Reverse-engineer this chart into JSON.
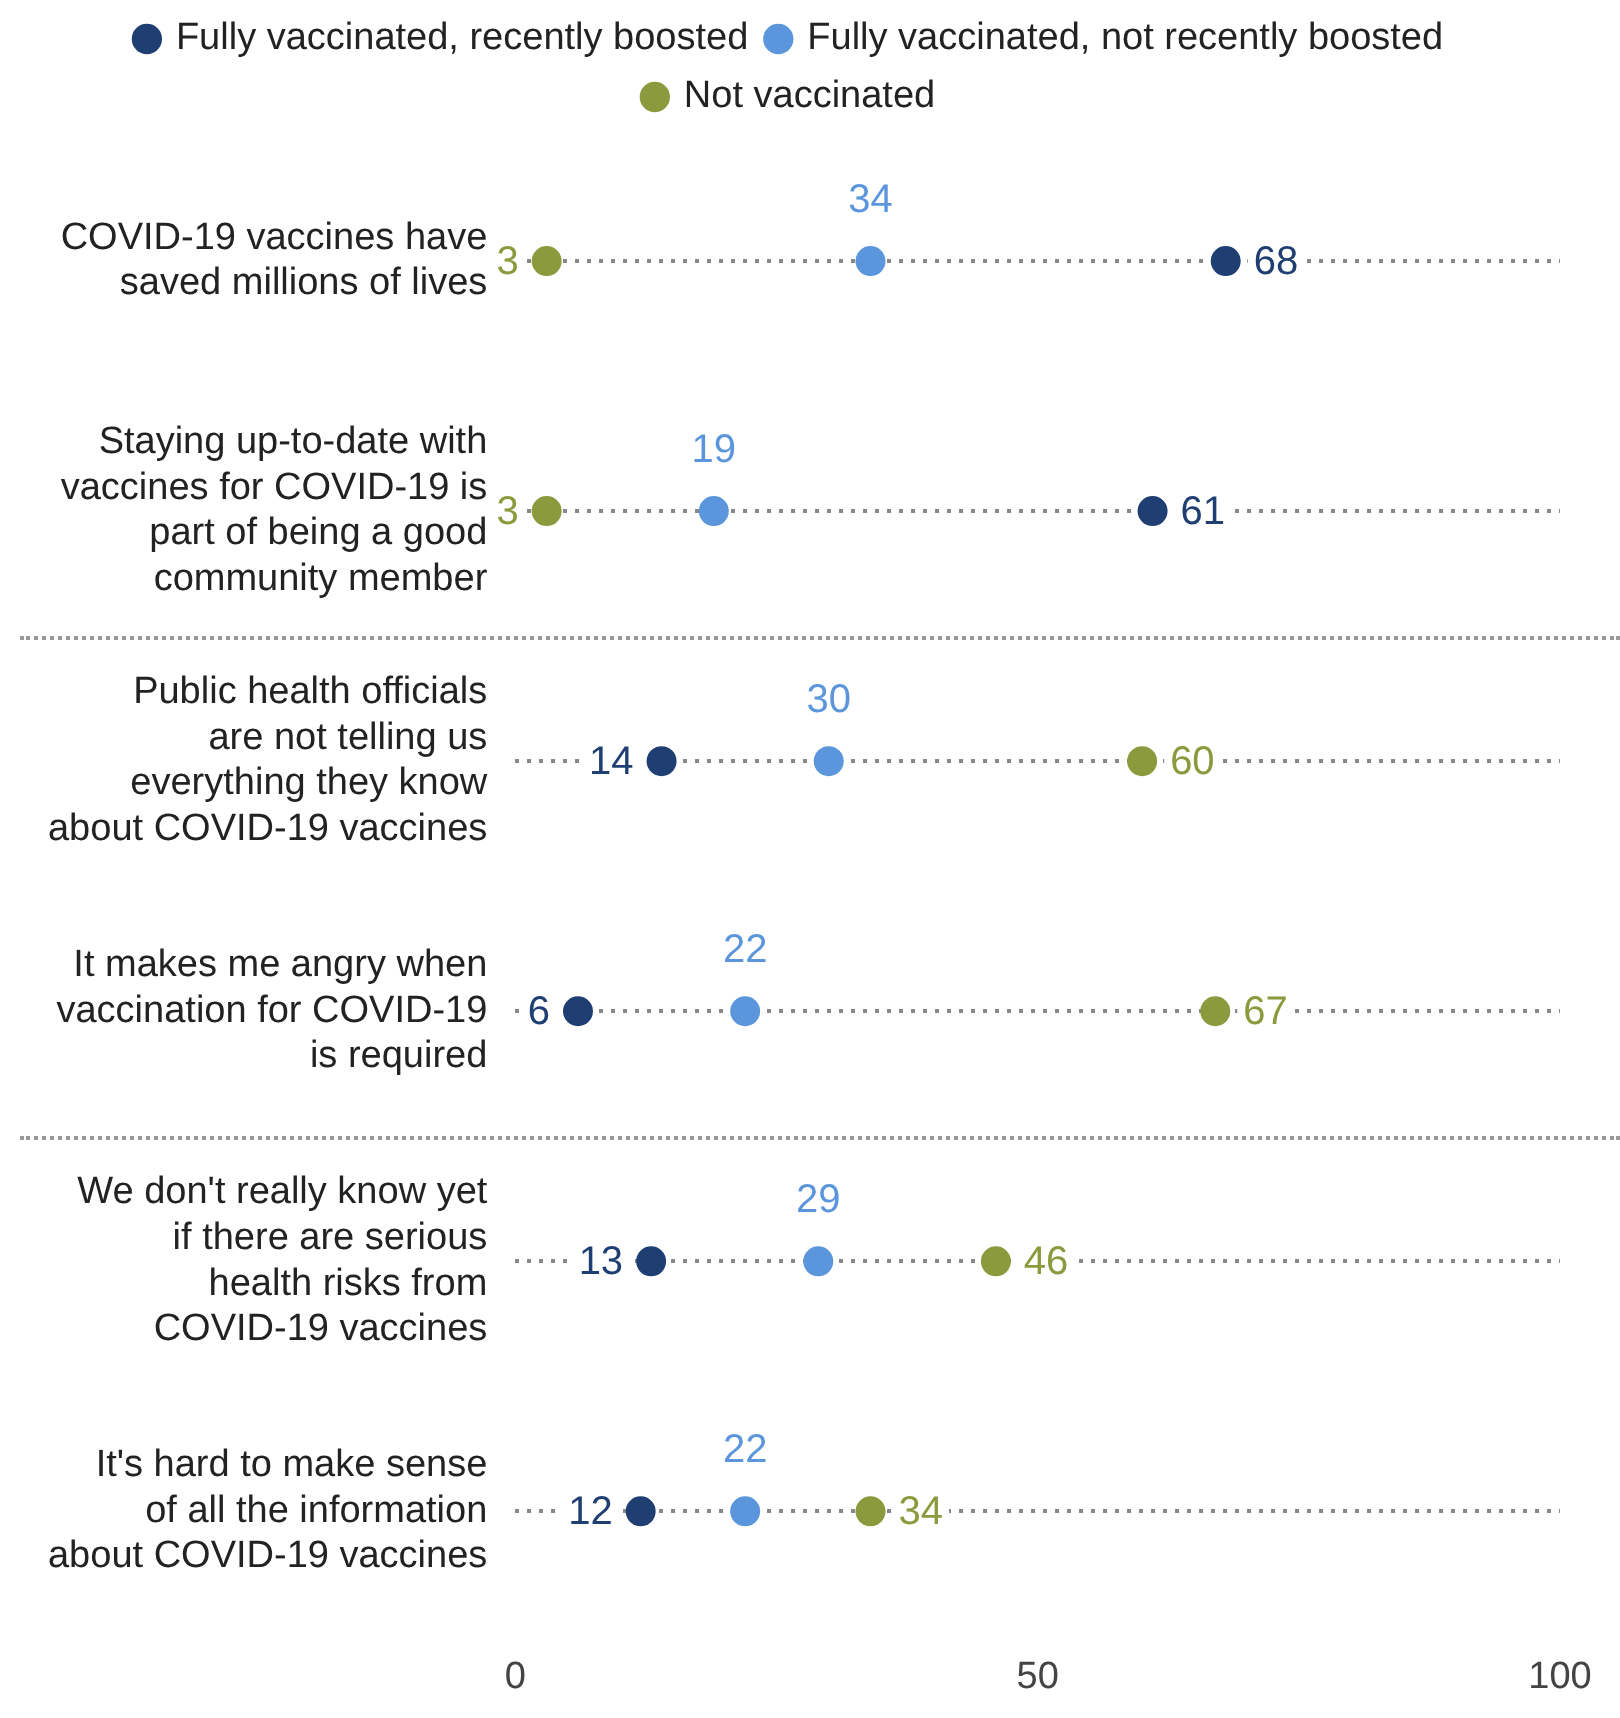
{
  "chart_data": {
    "type": "scatter",
    "orientation": "horizontal",
    "categories": [
      "COVID-19 vaccines have saved millions of lives",
      "Staying up-to-date with vaccines for COVID-19 is part of being a good community member",
      "Public health officials are not telling us everything they know about COVID-19 vaccines",
      "It makes me angry when vaccination for COVID-19 is required",
      "We don't really know yet if there are serious health risks from COVID-19 vaccines",
      "It's hard to make sense of all the information about COVID-19 vaccines"
    ],
    "series": [
      {
        "name": "Fully vaccinated, recently boosted",
        "color": "#1f3f73",
        "values": [
          68,
          61,
          14,
          6,
          13,
          12
        ]
      },
      {
        "name": "Fully vaccinated, not recently boosted",
        "color": "#5b96dc",
        "values": [
          34,
          19,
          30,
          22,
          29,
          22
        ]
      },
      {
        "name": "Not vaccinated",
        "color": "#8c9a3e",
        "values": [
          3,
          3,
          60,
          67,
          46,
          34
        ]
      }
    ],
    "xlim": [
      0,
      100
    ],
    "xticks": [
      0,
      50,
      100
    ],
    "grid": "y",
    "legend": "top",
    "marker": "circle",
    "data_labels": true
  }
}
